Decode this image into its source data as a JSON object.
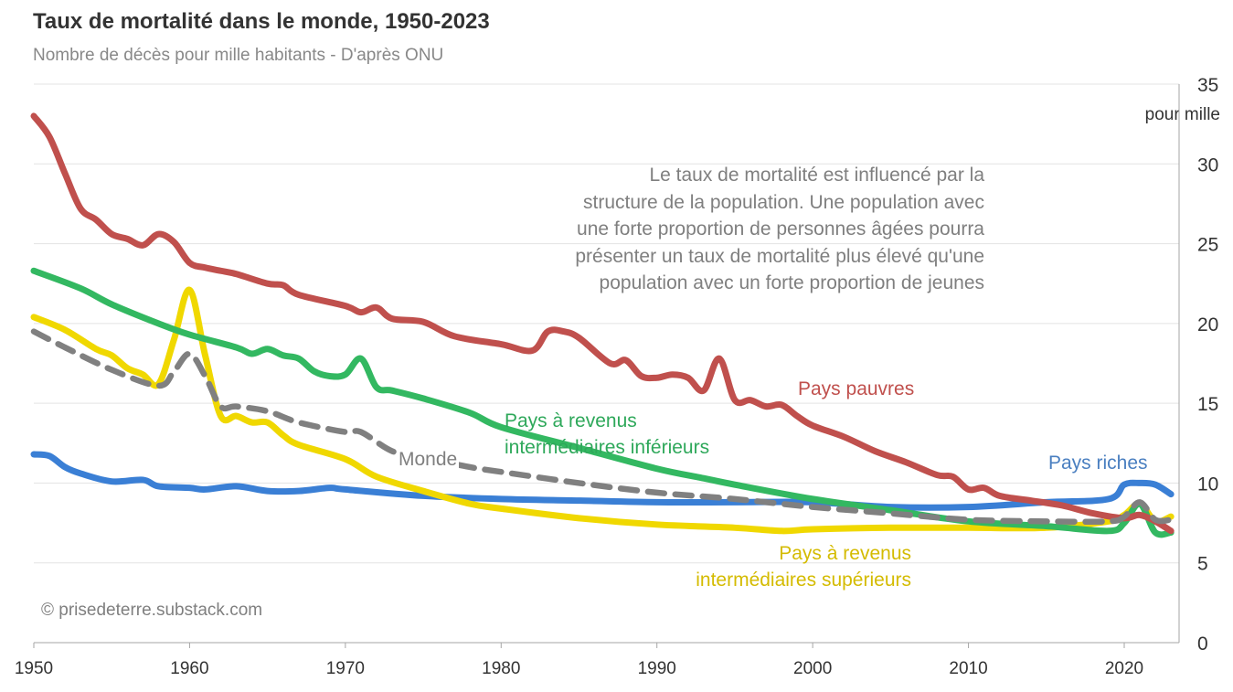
{
  "chart_data": {
    "type": "line",
    "title": "Taux de mortalité dans le monde, 1950-2023",
    "subtitle": "Nombre de décès pour mille habitants - D'après ONU",
    "ylabel": "pour mille",
    "xlim": [
      1950,
      2023
    ],
    "ylim": [
      0,
      35
    ],
    "xticks": [
      1950,
      1960,
      1970,
      1980,
      1990,
      2000,
      2010,
      2020
    ],
    "yticks": [
      0,
      5,
      10,
      15,
      20,
      25,
      30,
      35
    ],
    "grid": true,
    "y_axis_side": "right",
    "series": [
      {
        "name": "Pays pauvres",
        "color": "#c0504d",
        "label_color": "#c0504d",
        "dashed": false,
        "points": [
          [
            1950,
            33.0
          ],
          [
            1951,
            31.7
          ],
          [
            1952,
            29.4
          ],
          [
            1953,
            27.2
          ],
          [
            1954,
            26.5
          ],
          [
            1955,
            25.6
          ],
          [
            1956,
            25.3
          ],
          [
            1957,
            24.9
          ],
          [
            1958,
            25.6
          ],
          [
            1959,
            25.1
          ],
          [
            1960,
            23.8
          ],
          [
            1961,
            23.5
          ],
          [
            1962,
            23.3
          ],
          [
            1963,
            23.1
          ],
          [
            1965,
            22.5
          ],
          [
            1966,
            22.4
          ],
          [
            1967,
            21.8
          ],
          [
            1970,
            21.1
          ],
          [
            1971,
            20.7
          ],
          [
            1972,
            21.0
          ],
          [
            1973,
            20.3
          ],
          [
            1975,
            20.1
          ],
          [
            1977,
            19.2
          ],
          [
            1980,
            18.7
          ],
          [
            1982,
            18.3
          ],
          [
            1983,
            19.5
          ],
          [
            1984,
            19.5
          ],
          [
            1985,
            19.1
          ],
          [
            1987,
            17.5
          ],
          [
            1988,
            17.7
          ],
          [
            1989,
            16.7
          ],
          [
            1990,
            16.6
          ],
          [
            1991,
            16.8
          ],
          [
            1992,
            16.6
          ],
          [
            1993,
            15.8
          ],
          [
            1994,
            17.8
          ],
          [
            1995,
            15.2
          ],
          [
            1996,
            15.2
          ],
          [
            1997,
            14.8
          ],
          [
            1998,
            14.9
          ],
          [
            1999,
            14.2
          ],
          [
            2000,
            13.6
          ],
          [
            2002,
            12.9
          ],
          [
            2004,
            12.0
          ],
          [
            2006,
            11.3
          ],
          [
            2008,
            10.5
          ],
          [
            2009,
            10.4
          ],
          [
            2010,
            9.6
          ],
          [
            2011,
            9.7
          ],
          [
            2012,
            9.2
          ],
          [
            2014,
            8.9
          ],
          [
            2016,
            8.6
          ],
          [
            2018,
            8.1
          ],
          [
            2020,
            7.8
          ],
          [
            2021,
            8.0
          ],
          [
            2022,
            7.6
          ],
          [
            2023,
            7.0
          ]
        ]
      },
      {
        "name": "Pays à revenus intermédiaires inférieurs",
        "label_lines": [
          "Pays à revenus",
          "intermédiaires inférieurs"
        ],
        "color": "#33b861",
        "label_color": "#2ea85a",
        "dashed": false,
        "points": [
          [
            1950,
            23.3
          ],
          [
            1953,
            22.2
          ],
          [
            1955,
            21.2
          ],
          [
            1958,
            20.0
          ],
          [
            1960,
            19.3
          ],
          [
            1963,
            18.5
          ],
          [
            1964,
            18.1
          ],
          [
            1965,
            18.4
          ],
          [
            1966,
            18.0
          ],
          [
            1967,
            17.8
          ],
          [
            1968,
            17.0
          ],
          [
            1969,
            16.7
          ],
          [
            1970,
            16.8
          ],
          [
            1971,
            17.8
          ],
          [
            1972,
            16.0
          ],
          [
            1973,
            15.8
          ],
          [
            1975,
            15.3
          ],
          [
            1978,
            14.4
          ],
          [
            1980,
            13.5
          ],
          [
            1985,
            12.2
          ],
          [
            1990,
            10.9
          ],
          [
            1993,
            10.3
          ],
          [
            1995,
            9.9
          ],
          [
            2000,
            9.0
          ],
          [
            2005,
            8.3
          ],
          [
            2010,
            7.6
          ],
          [
            2015,
            7.3
          ],
          [
            2019,
            7.0
          ],
          [
            2020,
            7.5
          ],
          [
            2021,
            8.7
          ],
          [
            2022,
            6.9
          ],
          [
            2023,
            6.9
          ]
        ]
      },
      {
        "name": "Pays à revenus intermédiaires supérieurs",
        "label_lines": [
          "Pays à revenus",
          "intermédiaires supérieurs"
        ],
        "color": "#f0d800",
        "label_color": "#d4bb00",
        "dashed": false,
        "points": [
          [
            1950,
            20.4
          ],
          [
            1952,
            19.6
          ],
          [
            1954,
            18.4
          ],
          [
            1955,
            18.0
          ],
          [
            1956,
            17.2
          ],
          [
            1957,
            16.8
          ],
          [
            1958,
            16.2
          ],
          [
            1959,
            19.0
          ],
          [
            1960,
            22.1
          ],
          [
            1961,
            18.0
          ],
          [
            1962,
            14.2
          ],
          [
            1963,
            14.2
          ],
          [
            1964,
            13.8
          ],
          [
            1965,
            13.8
          ],
          [
            1966,
            13.0
          ],
          [
            1967,
            12.4
          ],
          [
            1970,
            11.5
          ],
          [
            1972,
            10.4
          ],
          [
            1975,
            9.5
          ],
          [
            1978,
            8.7
          ],
          [
            1980,
            8.4
          ],
          [
            1985,
            7.8
          ],
          [
            1990,
            7.4
          ],
          [
            1995,
            7.2
          ],
          [
            1998,
            7.0
          ],
          [
            2000,
            7.1
          ],
          [
            2005,
            7.2
          ],
          [
            2010,
            7.2
          ],
          [
            2015,
            7.2
          ],
          [
            2019,
            7.6
          ],
          [
            2020,
            8.0
          ],
          [
            2021,
            8.7
          ],
          [
            2022,
            7.6
          ],
          [
            2023,
            7.9
          ]
        ]
      },
      {
        "name": "Monde",
        "color": "#808080",
        "label_color": "#7f7f7f",
        "dashed": true,
        "points": [
          [
            1950,
            19.5
          ],
          [
            1952,
            18.5
          ],
          [
            1955,
            17.1
          ],
          [
            1958,
            16.1
          ],
          [
            1959,
            17.0
          ],
          [
            1960,
            18.1
          ],
          [
            1961,
            16.7
          ],
          [
            1962,
            14.8
          ],
          [
            1963,
            14.8
          ],
          [
            1965,
            14.5
          ],
          [
            1967,
            13.8
          ],
          [
            1970,
            13.2
          ],
          [
            1971,
            13.2
          ],
          [
            1973,
            12.0
          ],
          [
            1975,
            11.6
          ],
          [
            1978,
            11.0
          ],
          [
            1980,
            10.7
          ],
          [
            1985,
            10.0
          ],
          [
            1990,
            9.4
          ],
          [
            1995,
            9.0
          ],
          [
            2000,
            8.5
          ],
          [
            2005,
            8.1
          ],
          [
            2010,
            7.7
          ],
          [
            2015,
            7.6
          ],
          [
            2019,
            7.6
          ],
          [
            2020,
            7.9
          ],
          [
            2021,
            8.8
          ],
          [
            2022,
            7.7
          ],
          [
            2023,
            7.7
          ]
        ]
      },
      {
        "name": "Pays riches",
        "color": "#3a7fd5",
        "label_color": "#4a7fc0",
        "dashed": false,
        "points": [
          [
            1950,
            11.8
          ],
          [
            1951,
            11.7
          ],
          [
            1952,
            11.0
          ],
          [
            1953,
            10.6
          ],
          [
            1955,
            10.1
          ],
          [
            1957,
            10.2
          ],
          [
            1958,
            9.8
          ],
          [
            1960,
            9.7
          ],
          [
            1961,
            9.6
          ],
          [
            1963,
            9.8
          ],
          [
            1965,
            9.5
          ],
          [
            1967,
            9.5
          ],
          [
            1969,
            9.7
          ],
          [
            1970,
            9.6
          ],
          [
            1975,
            9.2
          ],
          [
            1980,
            9.0
          ],
          [
            1985,
            8.9
          ],
          [
            1990,
            8.8
          ],
          [
            1995,
            8.8
          ],
          [
            2000,
            8.8
          ],
          [
            2005,
            8.5
          ],
          [
            2010,
            8.5
          ],
          [
            2015,
            8.8
          ],
          [
            2019,
            9.0
          ],
          [
            2020,
            9.9
          ],
          [
            2021,
            10.0
          ],
          [
            2022,
            9.9
          ],
          [
            2023,
            9.3
          ]
        ]
      }
    ],
    "annotation": [
      "Le taux de mortalité est influencé par la",
      "structure de la population. Une population avec",
      "une forte proportion de personnes âgées pourra",
      "présenter un taux de mortalité plus élevé qu'une",
      "population avec un forte proportion de jeunes"
    ],
    "credit": "© prisedeterre.substack.com"
  }
}
